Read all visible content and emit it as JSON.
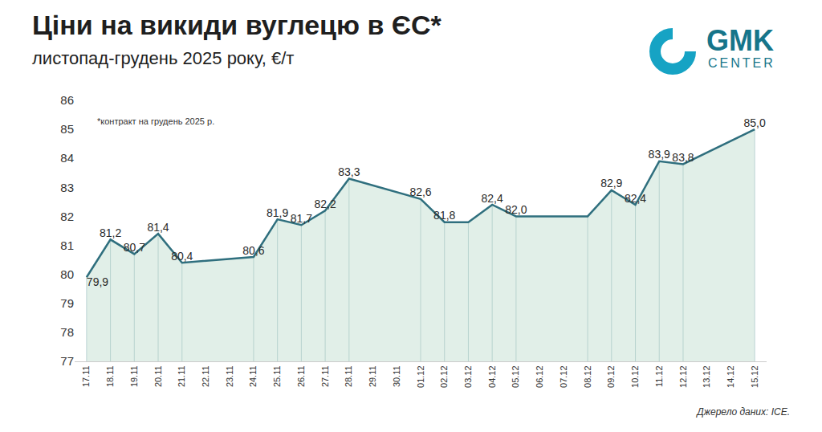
{
  "chart_data": {
    "type": "line",
    "title": "Ціни на викиди вуглецю в ЄС*",
    "subtitle": "листопад-грудень 2025 року, €/т",
    "note": "*контракт на грудень 2025 р.",
    "source": "Джерело даних: ICE.",
    "logo": [
      "GMK",
      "CENTER"
    ],
    "categories": [
      "17.11",
      "18.11",
      "19.11",
      "20.11",
      "21.11",
      "22.11",
      "23.11",
      "24.11",
      "25.11",
      "26.11",
      "27.11",
      "28.11",
      "29.11",
      "30.11",
      "01.12",
      "02.12",
      "03.12",
      "04.12",
      "05.12",
      "06.12",
      "07.12",
      "08.12",
      "09.12",
      "10.12",
      "11.12",
      "12.12",
      "13.12",
      "14.12",
      "15.12"
    ],
    "values": [
      79.9,
      81.2,
      80.7,
      81.4,
      80.4,
      null,
      null,
      80.6,
      81.9,
      81.7,
      82.2,
      83.3,
      null,
      null,
      82.6,
      81.8,
      81.8,
      82.4,
      82.0,
      null,
      null,
      82.0,
      82.9,
      82.4,
      83.9,
      83.8,
      null,
      null,
      85.0
    ],
    "value_labels": [
      "79,9",
      "81,2",
      "80,7",
      "81,4",
      "80,4",
      null,
      null,
      "80,6",
      "81,9",
      "81,7",
      "82,2",
      "83,3",
      null,
      null,
      "82,6",
      "81,8",
      null,
      "82,4",
      "82,0",
      null,
      null,
      null,
      "82,9",
      "82,4",
      "83,9",
      "83,8",
      null,
      null,
      "85,0"
    ],
    "data_labels": true,
    "color": "#2f6f7e",
    "ylim": [
      77,
      86
    ],
    "yticks": [
      77,
      78,
      79,
      80,
      81,
      82,
      83,
      84,
      85,
      86
    ],
    "grid": false
  }
}
